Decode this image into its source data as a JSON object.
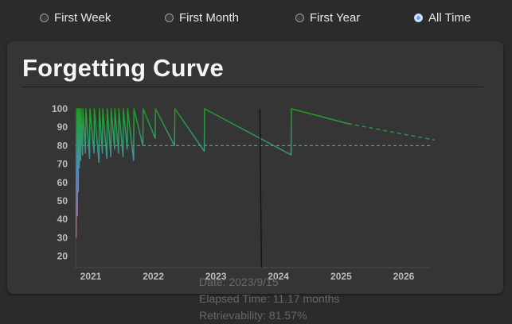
{
  "range_options": [
    {
      "label": "First Week",
      "checked": false
    },
    {
      "label": "First Month",
      "checked": false
    },
    {
      "label": "First Year",
      "checked": false
    },
    {
      "label": "All Time",
      "checked": true
    }
  ],
  "card": {
    "title": "Forgetting Curve"
  },
  "chart_data": {
    "type": "line",
    "title": "Forgetting Curve",
    "xlabel": "",
    "ylabel": "",
    "y_ticks": [
      "100",
      "90",
      "80",
      "70",
      "60",
      "50",
      "40",
      "30",
      "20"
    ],
    "x_ticks": [
      "2021",
      "2022",
      "2023",
      "2024",
      "2025",
      "2026"
    ],
    "ylim": [
      15,
      100
    ],
    "threshold": 80,
    "current_marker": "2023-09-15",
    "grid": false,
    "series": [
      {
        "values": [
          [
            "2020-10-08",
            30
          ],
          [
            "2020-10-12",
            100
          ],
          [
            "2020-10-15",
            42
          ],
          [
            "2020-10-17",
            100
          ],
          [
            "2020-10-20",
            55
          ],
          [
            "2020-10-22",
            100
          ],
          [
            "2020-10-26",
            68
          ],
          [
            "2020-10-28",
            100
          ],
          [
            "2020-11-03",
            72
          ],
          [
            "2020-11-05",
            100
          ],
          [
            "2020-11-14",
            75
          ],
          [
            "2020-11-16",
            100
          ],
          [
            "2020-12-01",
            76
          ],
          [
            "2020-12-03",
            100
          ],
          [
            "2020-12-25",
            73
          ],
          [
            "2020-12-27",
            100
          ],
          [
            "2021-01-20",
            76
          ],
          [
            "2021-01-22",
            100
          ],
          [
            "2021-02-18",
            71
          ],
          [
            "2021-02-20",
            100
          ],
          [
            "2021-03-10",
            76
          ],
          [
            "2021-03-12",
            100
          ],
          [
            "2021-04-05",
            73
          ],
          [
            "2021-04-07",
            100
          ],
          [
            "2021-04-28",
            74
          ],
          [
            "2021-04-30",
            100
          ],
          [
            "2021-05-20",
            78
          ],
          [
            "2021-05-22",
            100
          ],
          [
            "2021-06-12",
            76
          ],
          [
            "2021-06-14",
            100
          ],
          [
            "2021-07-08",
            74
          ],
          [
            "2021-07-10",
            100
          ],
          [
            "2021-08-02",
            78
          ],
          [
            "2021-08-04",
            100
          ],
          [
            "2021-09-08",
            72
          ],
          [
            "2021-09-10",
            100
          ],
          [
            "2021-11-01",
            80
          ],
          [
            "2021-11-03",
            100
          ],
          [
            "2022-01-12",
            84
          ],
          [
            "2022-01-14",
            100
          ],
          [
            "2022-05-05",
            80
          ],
          [
            "2022-05-07",
            100
          ],
          [
            "2022-10-25",
            77
          ],
          [
            "2022-10-27",
            100
          ],
          [
            "2024-03-15",
            75
          ],
          [
            "2024-03-17",
            100
          ],
          [
            "2025-02-10",
            92
          ]
        ]
      },
      {
        "values": [
          [
            "2025-02-10",
            92
          ],
          [
            "2026-07-01",
            83
          ]
        ]
      }
    ]
  },
  "tooltip": {
    "date": "Date: 2023/9/15",
    "elapsed": "Elapsed Time: 11.17 months",
    "retrievability": "Retrievability: 81.57%"
  }
}
